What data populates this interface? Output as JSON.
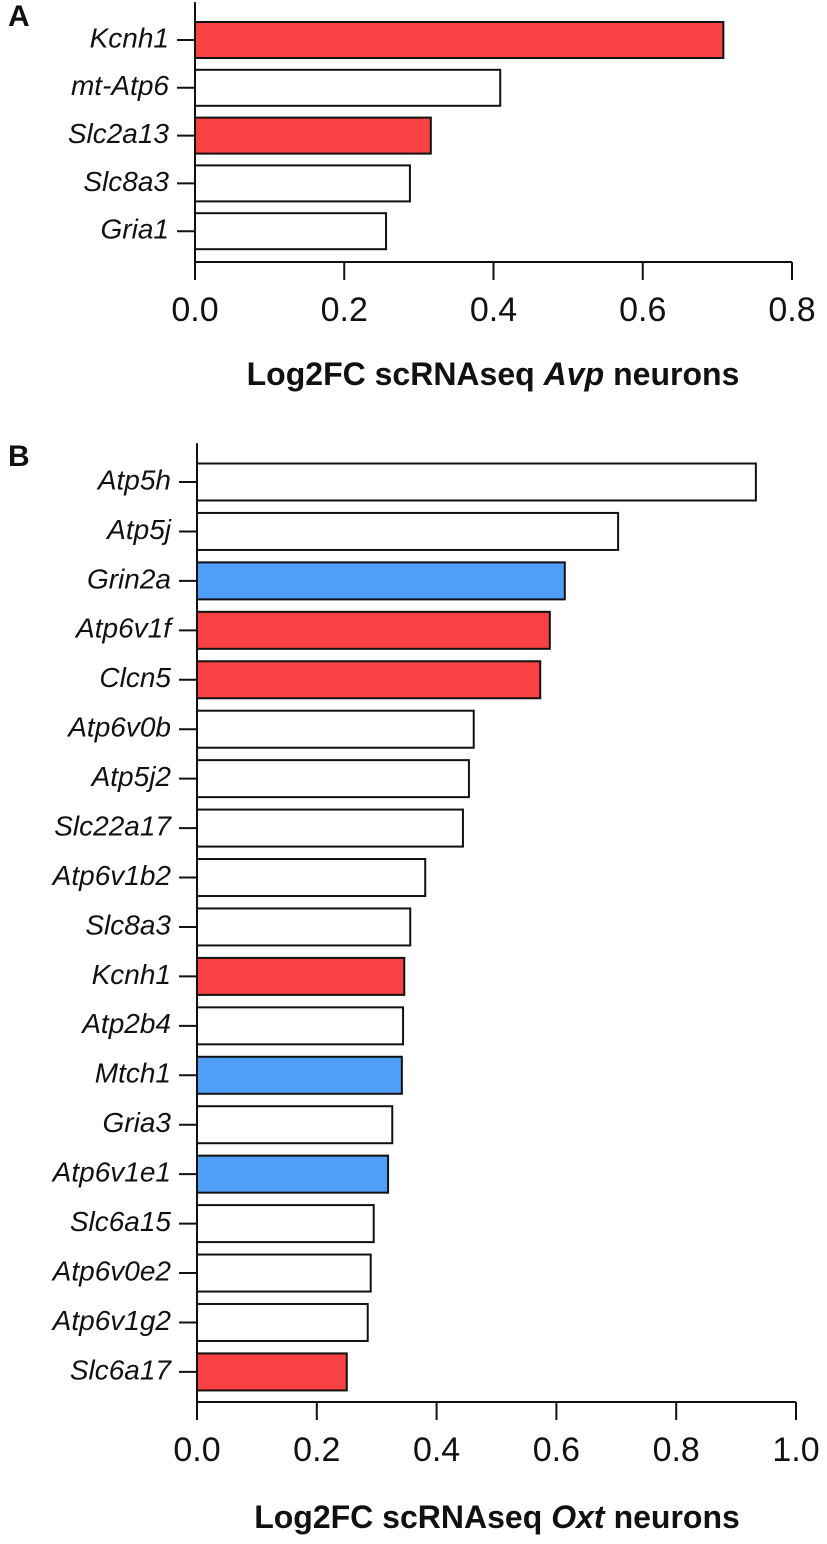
{
  "chart_data": [
    {
      "type": "bar",
      "orientation": "horizontal",
      "panel": "A",
      "categories": [
        "Kcnh1",
        "mt-Atp6",
        "Slc2a13",
        "Slc8a3",
        "Gria1"
      ],
      "values": [
        0.708,
        0.409,
        0.316,
        0.288,
        0.256
      ],
      "colors": [
        "#f94144",
        "#ffffff",
        "#f94144",
        "#ffffff",
        "#ffffff"
      ],
      "xlim": [
        0,
        0.8
      ],
      "xticks": [
        {
          "value": 0,
          "label": "0.0"
        },
        0.2,
        0.4,
        0.6,
        0.8
      ],
      "xlabel_parts": [
        "Log2FC scRNAseq",
        "Avp",
        "neurons"
      ]
    },
    {
      "type": "bar",
      "orientation": "horizontal",
      "panel": "B",
      "categories": [
        "Atp5h",
        "Atp5j",
        "Grin2a",
        "Atp6v1f",
        "Clcn5",
        "Atp6v0b",
        "Atp5j2",
        "Slc22a17",
        "Atp6v1b2",
        "Slc8a3",
        "Kcnh1",
        "Atp2b4",
        "Mtch1",
        "Gria3",
        "Atp6v1e1",
        "Slc6a15",
        "Atp6v0e2",
        "Atp6v1g2",
        "Slc6a17"
      ],
      "values": [
        0.933,
        0.703,
        0.614,
        0.589,
        0.573,
        0.462,
        0.454,
        0.444,
        0.381,
        0.356,
        0.346,
        0.344,
        0.342,
        0.326,
        0.319,
        0.295,
        0.29,
        0.285,
        0.25
      ],
      "colors": [
        "#ffffff",
        "#ffffff",
        "#4f9ef8",
        "#f94144",
        "#f94144",
        "#ffffff",
        "#ffffff",
        "#ffffff",
        "#ffffff",
        "#ffffff",
        "#f94144",
        "#ffffff",
        "#4f9ef8",
        "#ffffff",
        "#4f9ef8",
        "#ffffff",
        "#ffffff",
        "#ffffff",
        "#f94144"
      ],
      "xlim": [
        0,
        1.0
      ],
      "xticks": [
        {
          "value": 0,
          "label": "0.0"
        },
        0.2,
        0.4,
        0.6,
        0.8,
        {
          "value": 1.0,
          "label": "1.0"
        }
      ],
      "xlabel_parts": [
        "Log2FC scRNAseq",
        "Oxt",
        "neurons"
      ]
    }
  ]
}
